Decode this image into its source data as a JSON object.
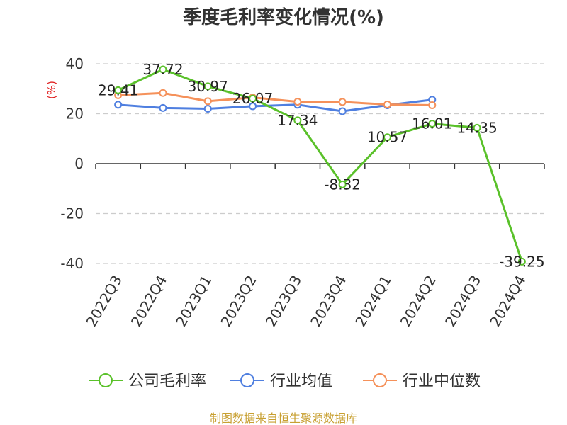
{
  "chart_data": {
    "type": "line",
    "title": "季度毛利率变化情况(%)",
    "ylabel": "(%)",
    "xlabel": "",
    "categories": [
      "2022Q3",
      "2022Q4",
      "2023Q1",
      "2023Q2",
      "2023Q3",
      "2023Q4",
      "2024Q1",
      "2024Q2",
      "2024Q3",
      "2024Q4"
    ],
    "ylim": [
      -40,
      40
    ],
    "yticks": [
      40,
      20,
      0,
      -20,
      -40
    ],
    "grid": true,
    "legend_position": "bottom",
    "series": [
      {
        "name": "公司毛利率",
        "color": "#5ac12a",
        "values": [
          29.41,
          37.72,
          30.97,
          26.07,
          17.34,
          -8.32,
          10.57,
          16.01,
          14.35,
          -39.25
        ],
        "labels": [
          "29.41",
          "37.72",
          "30.97",
          "26.07",
          "17.34",
          "-8.32",
          "10.57",
          "16.01",
          "14.35",
          "-39.25"
        ]
      },
      {
        "name": "行业均值",
        "color": "#4f7fe0",
        "values": [
          23.6,
          22.3,
          22.0,
          23.0,
          23.6,
          21.0,
          23.4,
          25.6,
          null,
          null
        ]
      },
      {
        "name": "行业中位数",
        "color": "#f5915a",
        "values": [
          27.4,
          28.3,
          25.0,
          26.5,
          24.8,
          24.7,
          23.7,
          23.4,
          null,
          null
        ]
      }
    ],
    "source": "制图数据来自恒生聚源数据库"
  }
}
